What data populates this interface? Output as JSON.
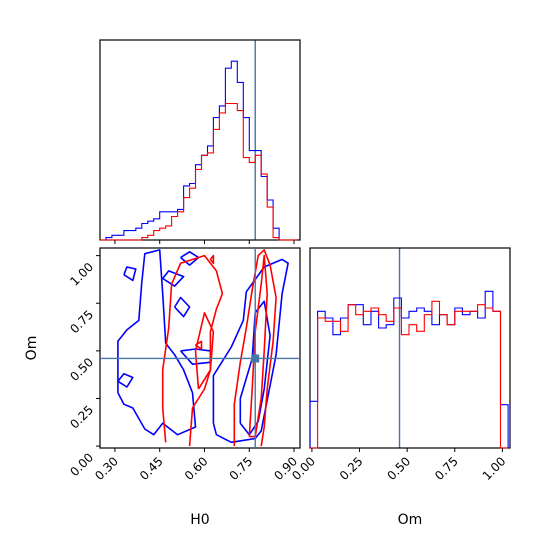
{
  "chart_data": {
    "type": "corner",
    "parameters": [
      "H0",
      "Om"
    ],
    "truth": {
      "H0": 0.77,
      "Om": 0.46
    },
    "truth_color": "#4477aa",
    "series_colors": {
      "series_a": "#0000ff",
      "series_b": "#ff0000"
    },
    "axes": {
      "H0": {
        "label": "H0",
        "lim": [
          0.25,
          0.92
        ],
        "ticks": [
          "0.30",
          "0.45",
          "0.60",
          "0.75",
          "0.90"
        ]
      },
      "Om": {
        "label": "Om",
        "lim": [
          -0.01,
          1.04
        ],
        "ticks": [
          "0.00",
          "0.25",
          "0.50",
          "0.75",
          "1.00"
        ]
      }
    },
    "hist_H0": {
      "edges": [
        0.25,
        0.27,
        0.29,
        0.31,
        0.33,
        0.35,
        0.37,
        0.39,
        0.41,
        0.43,
        0.45,
        0.47,
        0.49,
        0.51,
        0.53,
        0.55,
        0.57,
        0.59,
        0.61,
        0.63,
        0.65,
        0.67,
        0.69,
        0.71,
        0.73,
        0.75,
        0.77,
        0.79,
        0.81,
        0.83,
        0.85,
        0.87,
        0.89,
        0.91
      ],
      "series_a": [
        0.0,
        0.01,
        0.02,
        0.02,
        0.04,
        0.04,
        0.05,
        0.07,
        0.08,
        0.09,
        0.12,
        0.12,
        0.12,
        0.13,
        0.23,
        0.24,
        0.32,
        0.36,
        0.4,
        0.52,
        0.57,
        0.73,
        0.76,
        0.67,
        0.52,
        0.38,
        0.38,
        0.27,
        0.17,
        0.05,
        0.0,
        0.0,
        0.0
      ],
      "series_b": [
        0.0,
        0.0,
        0.0,
        0.0,
        0.0,
        0.0,
        0.0,
        0.01,
        0.02,
        0.04,
        0.05,
        0.06,
        0.1,
        0.12,
        0.18,
        0.22,
        0.3,
        0.36,
        0.37,
        0.47,
        0.54,
        0.58,
        0.58,
        0.55,
        0.35,
        0.33,
        0.36,
        0.28,
        0.14,
        0.01,
        0.0,
        0.0,
        0.0
      ]
    },
    "hist_Om": {
      "edges": [
        -0.01,
        0.03,
        0.07,
        0.11,
        0.15,
        0.19,
        0.23,
        0.27,
        0.31,
        0.35,
        0.39,
        0.43,
        0.47,
        0.51,
        0.55,
        0.59,
        0.63,
        0.67,
        0.71,
        0.75,
        0.79,
        0.83,
        0.87,
        0.91,
        0.95,
        0.99,
        1.03
      ],
      "series_a": [
        0.14,
        0.41,
        0.39,
        0.34,
        0.39,
        0.43,
        0.43,
        0.37,
        0.41,
        0.36,
        0.37,
        0.45,
        0.39,
        0.41,
        0.42,
        0.41,
        0.37,
        0.4,
        0.37,
        0.42,
        0.4,
        0.41,
        0.39,
        0.47,
        0.41,
        0.13
      ],
      "series_b": [
        0.0,
        0.39,
        0.38,
        0.38,
        0.35,
        0.43,
        0.4,
        0.41,
        0.42,
        0.4,
        0.38,
        0.42,
        0.34,
        0.37,
        0.35,
        0.4,
        0.44,
        0.4,
        0.37,
        0.41,
        0.41,
        0.41,
        0.43,
        0.42,
        0.41,
        0.0
      ]
    },
    "contours": {
      "series_a": [
        [
          [
            0.31,
            0.28
          ],
          [
            0.31,
            0.55
          ],
          [
            0.34,
            0.61
          ],
          [
            0.38,
            0.66
          ],
          [
            0.39,
            0.86
          ],
          [
            0.4,
            1.01
          ],
          [
            0.45,
            1.03
          ],
          [
            0.46,
            0.8
          ],
          [
            0.47,
            0.54
          ],
          [
            0.5,
            0.48
          ],
          [
            0.53,
            0.4
          ],
          [
            0.56,
            0.28
          ],
          [
            0.57,
            0.1
          ],
          [
            0.51,
            0.06
          ],
          [
            0.46,
            0.12
          ],
          [
            0.43,
            0.06
          ],
          [
            0.4,
            0.09
          ],
          [
            0.36,
            0.2
          ],
          [
            0.33,
            0.22
          ],
          [
            0.31,
            0.28
          ]
        ],
        [
          [
            0.63,
            0.12
          ],
          [
            0.63,
            0.37
          ],
          [
            0.69,
            0.52
          ],
          [
            0.73,
            0.66
          ],
          [
            0.74,
            0.81
          ],
          [
            0.8,
            0.94
          ],
          [
            0.86,
            0.98
          ],
          [
            0.88,
            0.96
          ],
          [
            0.86,
            0.8
          ],
          [
            0.84,
            0.48
          ],
          [
            0.79,
            0.08
          ],
          [
            0.77,
            0.04
          ],
          [
            0.69,
            0.02
          ],
          [
            0.64,
            0.06
          ],
          [
            0.63,
            0.12
          ]
        ],
        [
          [
            0.52,
            0.5
          ],
          [
            0.56,
            0.43
          ],
          [
            0.62,
            0.44
          ],
          [
            0.62,
            0.5
          ],
          [
            0.57,
            0.51
          ],
          [
            0.52,
            0.5
          ]
        ],
        [
          [
            0.46,
            0.88
          ],
          [
            0.5,
            0.84
          ],
          [
            0.53,
            0.89
          ],
          [
            0.48,
            0.92
          ],
          [
            0.46,
            0.88
          ]
        ],
        [
          [
            0.31,
            0.34
          ],
          [
            0.34,
            0.31
          ],
          [
            0.36,
            0.36
          ],
          [
            0.33,
            0.38
          ],
          [
            0.31,
            0.34
          ]
        ],
        [
          [
            0.33,
            0.9
          ],
          [
            0.36,
            0.87
          ],
          [
            0.37,
            0.93
          ],
          [
            0.34,
            0.94
          ],
          [
            0.33,
            0.9
          ]
        ],
        [
          [
            0.5,
            0.73
          ],
          [
            0.53,
            0.68
          ],
          [
            0.55,
            0.73
          ],
          [
            0.52,
            0.78
          ],
          [
            0.5,
            0.73
          ]
        ],
        [
          [
            0.52,
            0.99
          ],
          [
            0.55,
            0.95
          ],
          [
            0.58,
            0.99
          ],
          [
            0.55,
            1.02
          ],
          [
            0.52,
            0.99
          ]
        ],
        [
          [
            0.72,
            0.12
          ],
          [
            0.72,
            0.25
          ],
          [
            0.76,
            0.46
          ],
          [
            0.77,
            0.7
          ],
          [
            0.8,
            0.76
          ],
          [
            0.82,
            0.58
          ],
          [
            0.8,
            0.3
          ],
          [
            0.78,
            0.13
          ],
          [
            0.75,
            0.06
          ],
          [
            0.72,
            0.12
          ]
        ]
      ],
      "series_b": [
        [
          [
            0.47,
            0.02
          ],
          [
            0.46,
            0.2
          ],
          [
            0.46,
            0.4
          ],
          [
            0.48,
            0.62
          ],
          [
            0.49,
            0.85
          ],
          [
            0.52,
            0.96
          ],
          [
            0.6,
            1.0
          ],
          [
            0.64,
            0.92
          ],
          [
            0.66,
            0.8
          ],
          [
            0.64,
            0.72
          ],
          [
            0.62,
            0.6
          ],
          [
            0.62,
            0.4
          ],
          [
            0.6,
            0.3
          ],
          [
            0.56,
            0.2
          ],
          [
            0.55,
            0.0
          ]
        ],
        [
          [
            0.7,
            0.0
          ],
          [
            0.7,
            0.22
          ],
          [
            0.72,
            0.44
          ],
          [
            0.74,
            0.62
          ],
          [
            0.76,
            0.82
          ],
          [
            0.78,
            1.0
          ],
          [
            0.8,
            1.03
          ],
          [
            0.82,
            0.95
          ],
          [
            0.84,
            0.78
          ],
          [
            0.83,
            0.55
          ],
          [
            0.81,
            0.3
          ],
          [
            0.8,
            0.1
          ],
          [
            0.79,
            0.0
          ]
        ],
        [
          [
            0.58,
            0.3
          ],
          [
            0.57,
            0.5
          ],
          [
            0.6,
            0.7
          ],
          [
            0.63,
            0.6
          ],
          [
            0.62,
            0.4
          ],
          [
            0.58,
            0.3
          ]
        ],
        [
          [
            0.75,
            0.05
          ],
          [
            0.76,
            0.3
          ],
          [
            0.77,
            0.6
          ],
          [
            0.79,
            0.85
          ],
          [
            0.8,
            1.0
          ],
          [
            0.81,
            0.8
          ],
          [
            0.8,
            0.5
          ],
          [
            0.79,
            0.25
          ],
          [
            0.77,
            0.05
          ],
          [
            0.75,
            0.05
          ]
        ],
        [
          [
            0.62,
            0.98
          ],
          [
            0.63,
            0.96
          ],
          [
            0.63,
            1.0
          ],
          [
            0.62,
            0.98
          ]
        ],
        [
          [
            0.57,
            0.53
          ],
          [
            0.59,
            0.51
          ],
          [
            0.59,
            0.55
          ],
          [
            0.57,
            0.53
          ]
        ]
      ]
    }
  }
}
